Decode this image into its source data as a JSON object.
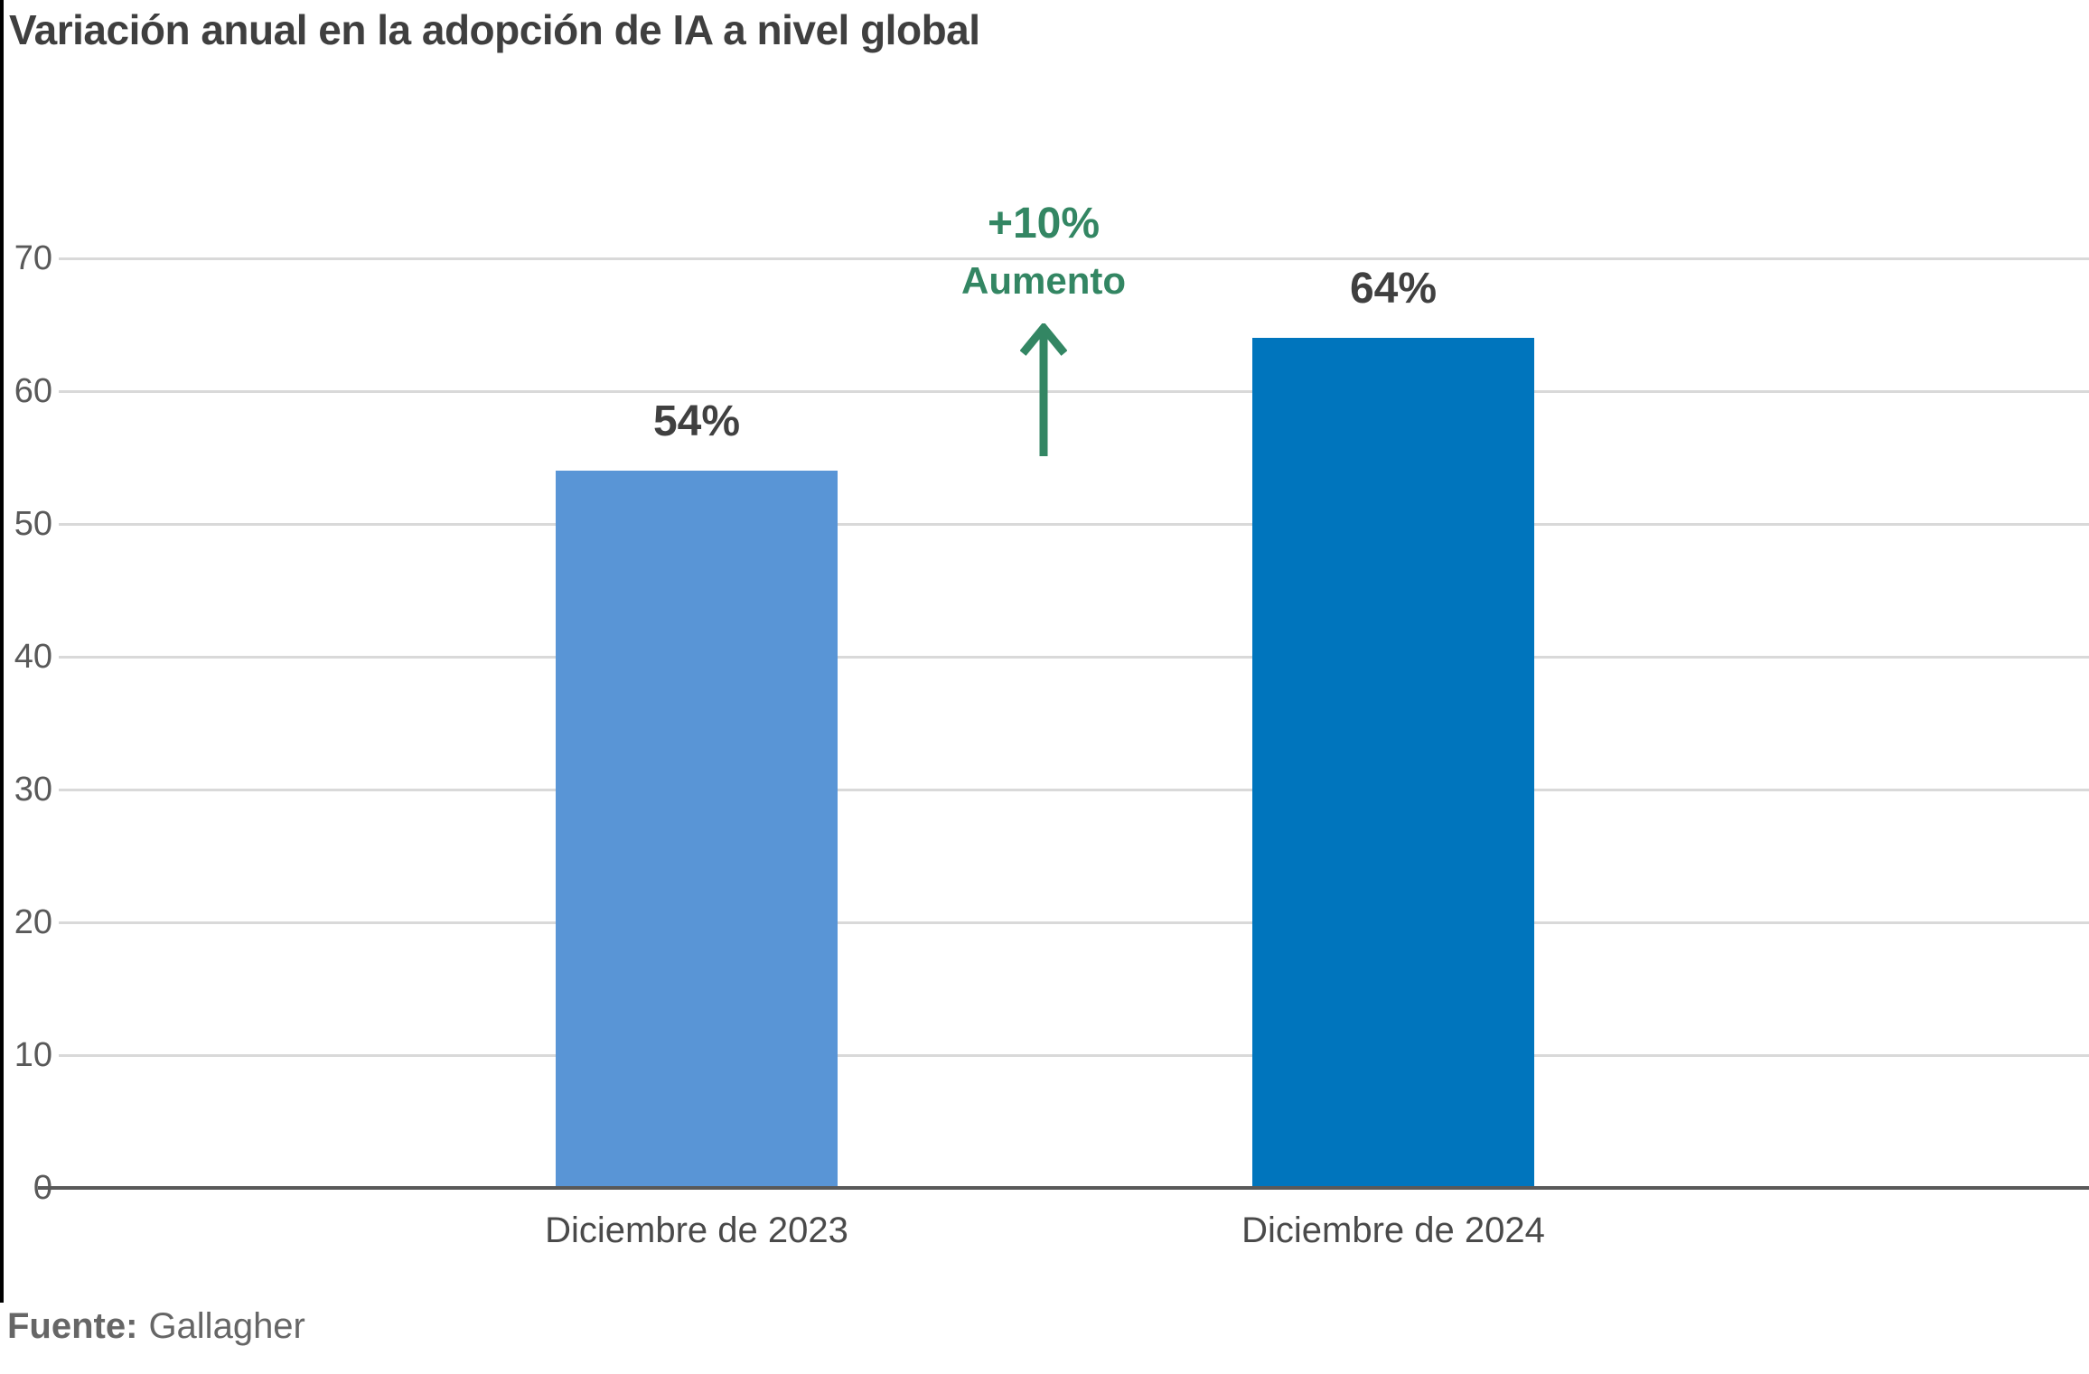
{
  "title": "Variación anual en la adopción de IA a nivel global",
  "annotation": {
    "delta": "+10%",
    "word": "Aumento",
    "color": "#338663"
  },
  "source": {
    "label": "Fuente:",
    "value": "Gallagher"
  },
  "colors": {
    "grid": "#d9d9d9",
    "baseline": "#595959",
    "title_text": "#3f3f3f",
    "value_label_text": "#404040",
    "tick_text": "#595959"
  },
  "chart_data": {
    "type": "bar",
    "title": "Variación anual en la adopción de IA a nivel global",
    "categories": [
      "Diciembre de 2023",
      "Diciembre de 2024"
    ],
    "values": [
      54,
      64
    ],
    "value_labels": [
      "54%",
      "64%"
    ],
    "bar_colors": [
      "#5995d6",
      "#0075bd"
    ],
    "xlabel": "",
    "ylabel": "",
    "ylim": [
      0,
      70
    ],
    "yticks": [
      0,
      10,
      20,
      30,
      40,
      50,
      60,
      70
    ],
    "grid": "horizontal",
    "legend": "none",
    "annotation": {
      "text": "+10% Aumento",
      "between_categories": true
    }
  }
}
